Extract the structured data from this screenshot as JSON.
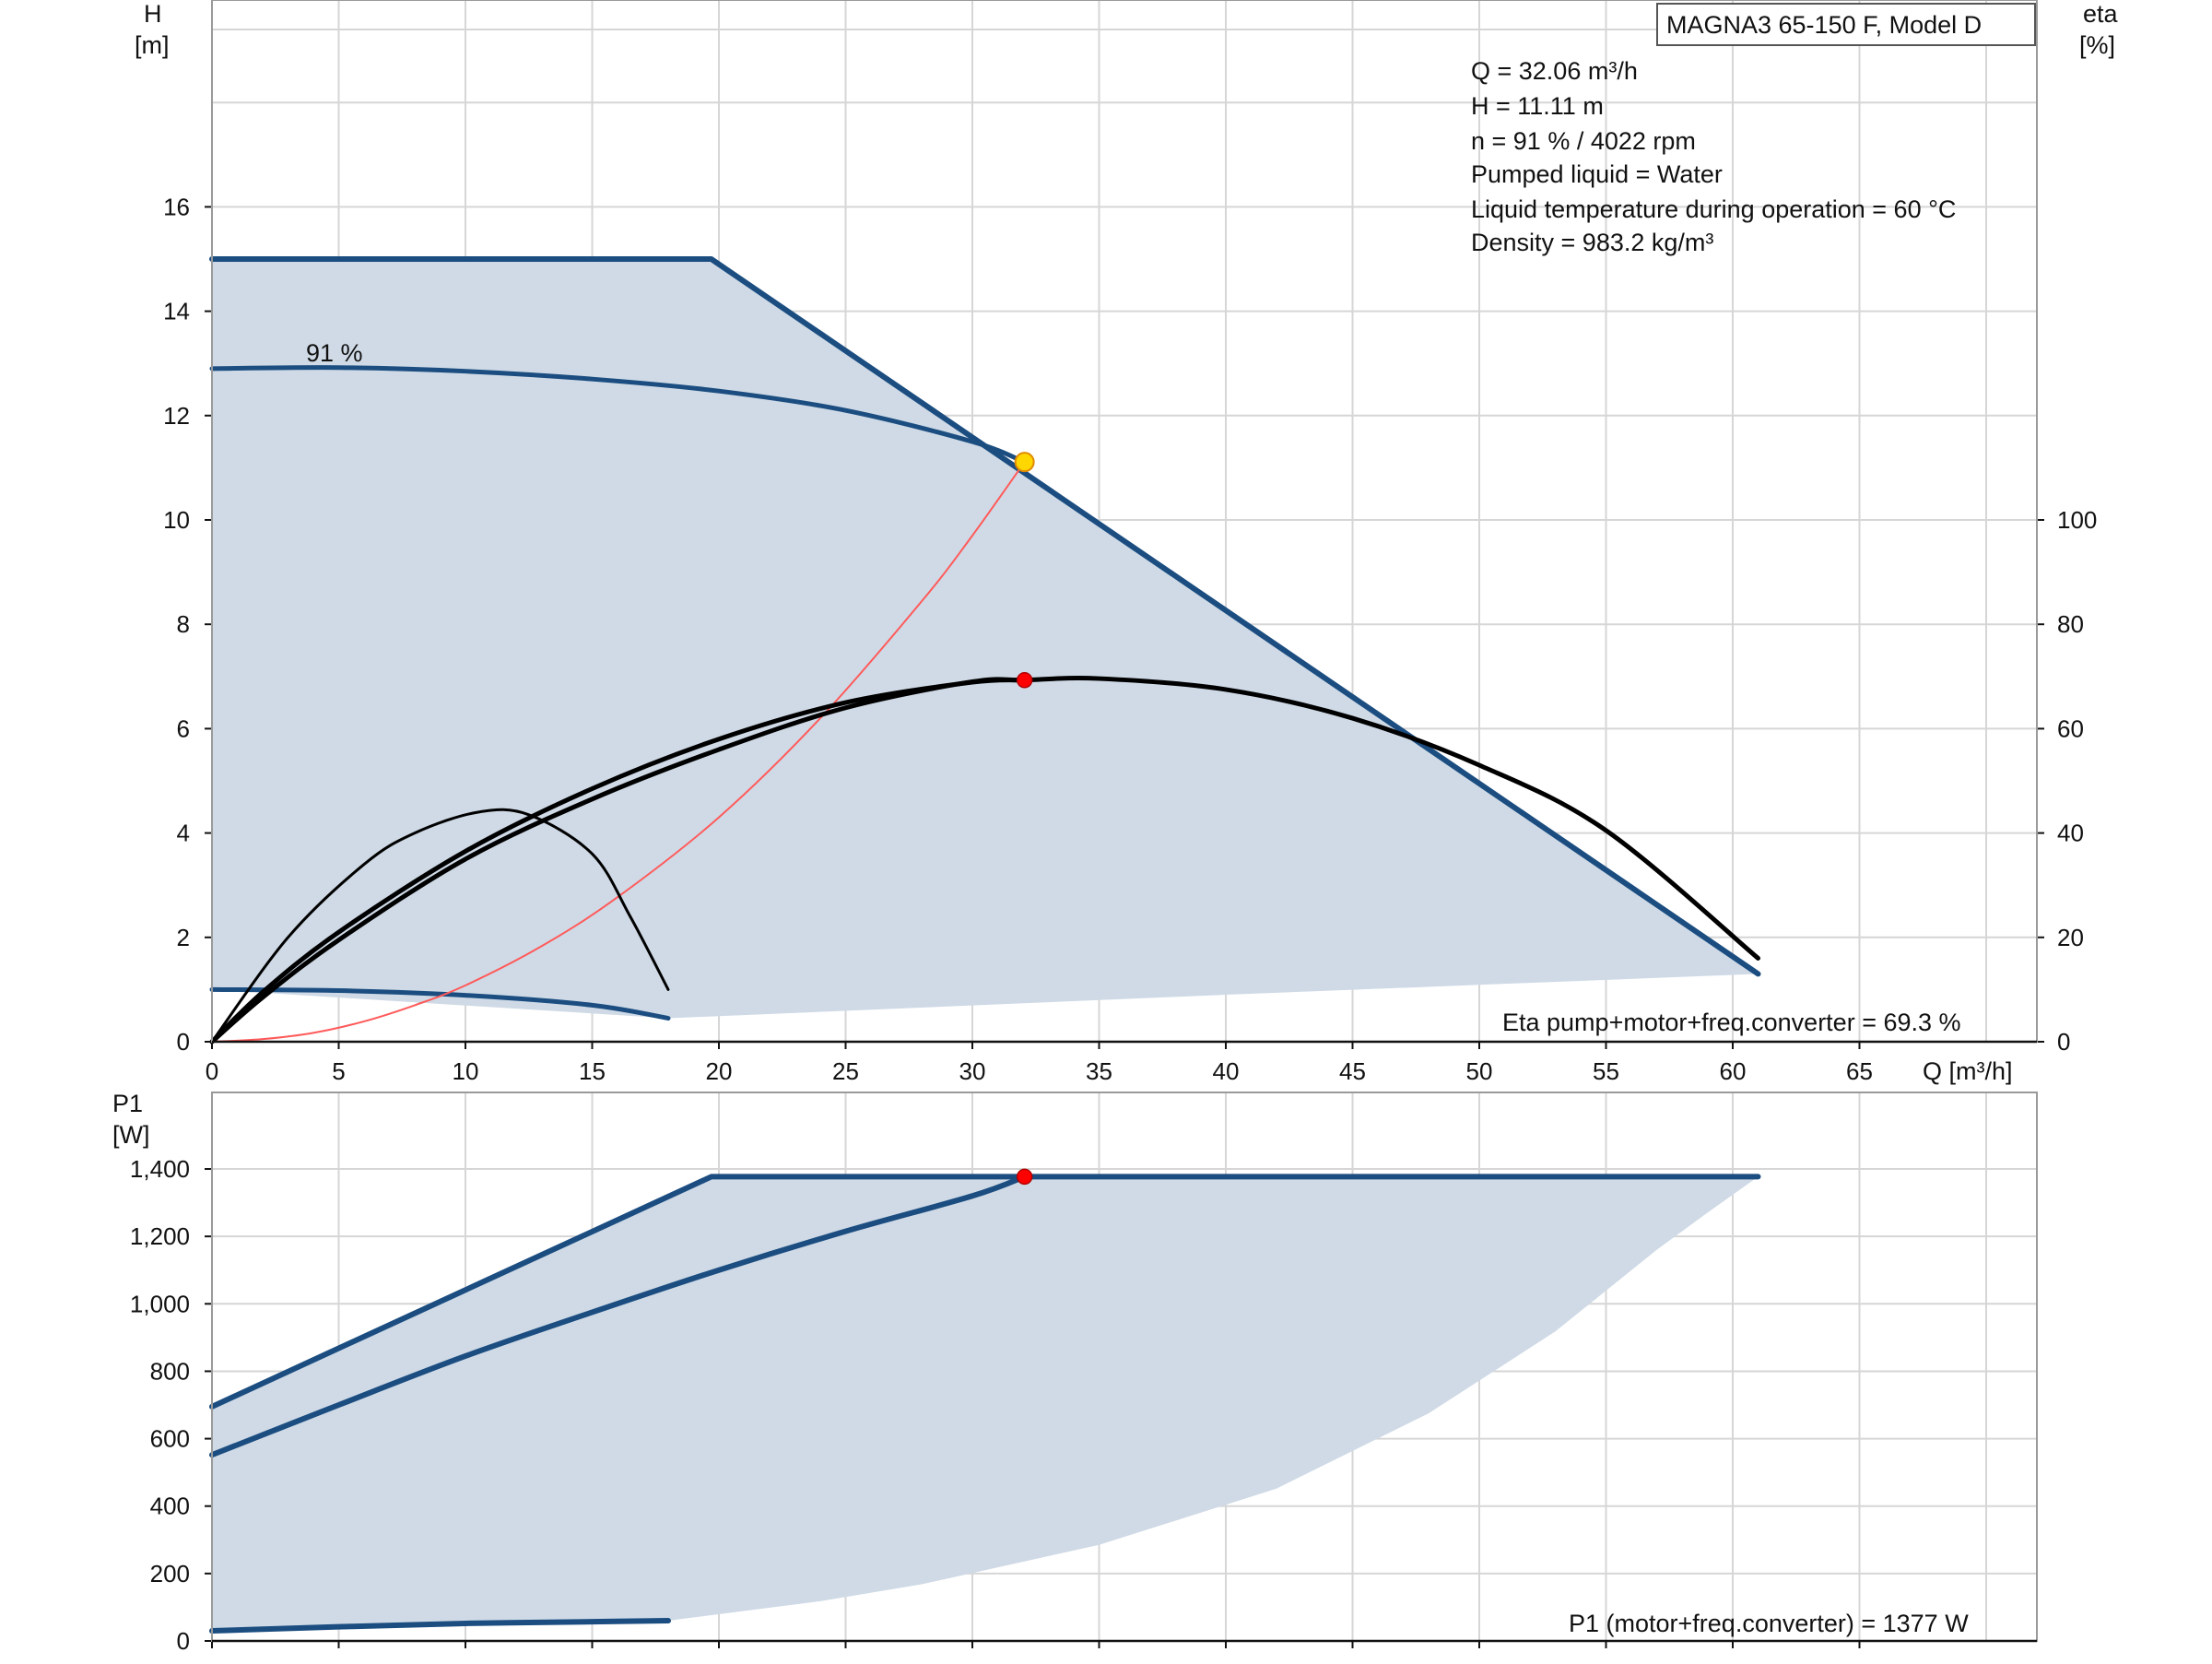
{
  "chart_data": [
    {
      "type": "line",
      "id": "head-efficiency",
      "title_box": "MAGNA3 65-150 F, Model D",
      "y_label": "H",
      "y_unit": "[m]",
      "y2_label": "eta",
      "y2_unit": "[%]",
      "x_label": "Q [m³/h]",
      "xlim": [
        0,
        72
      ],
      "ylim": [
        0,
        20
      ],
      "y2lim": [
        0,
        200
      ],
      "x_ticks": [
        "0",
        "5",
        "10",
        "15",
        "20",
        "25",
        "30",
        "35",
        "40",
        "45",
        "50",
        "55",
        "60",
        "65"
      ],
      "y_ticks": [
        "0",
        "2",
        "4",
        "6",
        "8",
        "10",
        "12",
        "14",
        "16"
      ],
      "y2_ticks": [
        "0",
        "20",
        "40",
        "60",
        "80",
        "100"
      ],
      "grid": true,
      "info_lines": [
        "Q = 32.06 m³/h",
        "H = 11.11 m",
        "n = 91 % / 4022 rpm",
        "Pumped liquid = Water",
        "Liquid temperature during operation = 60 °C",
        "Density = 983.2 kg/m³"
      ],
      "curve_label": "91 %",
      "eta_result": "Eta pump+motor+freq.converter = 69.3 %",
      "colors": {
        "area": "#cfdae6",
        "curve": "#1b4d80",
        "eta": "#000000",
        "system": "#ff5a5a",
        "duty_point_head": "#ffd700",
        "duty_point_eta": "#ff0000"
      },
      "operating_area": [
        [
          0,
          15
        ],
        [
          19.7,
          15
        ],
        [
          61,
          1.3
        ],
        [
          40,
          0.9
        ],
        [
          18,
          0.45
        ],
        [
          0,
          1
        ]
      ],
      "series": [
        {
          "role": "max-curve",
          "color": "#1b4d80",
          "points": [
            [
              0,
              15
            ],
            [
              19.7,
              15
            ],
            [
              61,
              1.3
            ]
          ]
        },
        {
          "role": "speed-curve-91",
          "color": "#1b4d80",
          "points": [
            [
              0,
              12.9
            ],
            [
              5,
              12.92
            ],
            [
              10,
              12.85
            ],
            [
              15,
              12.7
            ],
            [
              20,
              12.47
            ],
            [
              25,
              12.1
            ],
            [
              30,
              11.5
            ],
            [
              32.06,
              11.11
            ]
          ]
        },
        {
          "role": "min-curve",
          "color": "#1b4d80",
          "points": [
            [
              0,
              1
            ],
            [
              5,
              0.98
            ],
            [
              10,
              0.89
            ],
            [
              15,
              0.7
            ],
            [
              18,
              0.45
            ]
          ]
        },
        {
          "role": "system-curve",
          "color": "#ff5a5a",
          "points": [
            [
              0,
              0
            ],
            [
              2,
              0.05
            ],
            [
              4,
              0.17
            ],
            [
              6,
              0.39
            ],
            [
              8,
              0.7
            ],
            [
              10,
              1.08
            ],
            [
              13,
              1.83
            ],
            [
              16,
              2.77
            ],
            [
              20,
              4.3
            ],
            [
              24,
              6.2
            ],
            [
              28,
              8.44
            ],
            [
              30,
              9.7
            ],
            [
              32.06,
              11.11
            ]
          ]
        },
        {
          "role": "eta-max",
          "color": "#000000",
          "points": [
            [
              0,
              0
            ],
            [
              2,
              8.5
            ],
            [
              5,
              19.5
            ],
            [
              10,
              35
            ],
            [
              15,
              46.5
            ],
            [
              20,
              56
            ],
            [
              25,
              64
            ],
            [
              30,
              69
            ],
            [
              32.06,
              69.3
            ],
            [
              35,
              69.6
            ],
            [
              40,
              67.5
            ],
            [
              45,
              62
            ],
            [
              50,
              53
            ],
            [
              55,
              40.5
            ],
            [
              61,
              16
            ]
          ]
        },
        {
          "role": "eta-91",
          "color": "#000000",
          "points": [
            [
              0,
              0
            ],
            [
              2,
              9.5
            ],
            [
              5,
              21
            ],
            [
              10,
              36.5
            ],
            [
              15,
              48.5
            ],
            [
              20,
              58
            ],
            [
              25,
              65
            ],
            [
              30,
              68.9
            ],
            [
              32.06,
              69.3
            ]
          ]
        },
        {
          "role": "eta-min",
          "color": "#000000",
          "points": [
            [
              0,
              0
            ],
            [
              3,
              20
            ],
            [
              6,
              34
            ],
            [
              8,
              40
            ],
            [
              10.5,
              44
            ],
            [
              12.5,
              43.5
            ],
            [
              15,
              36
            ],
            [
              16.5,
              24
            ],
            [
              18,
              10
            ]
          ]
        }
      ],
      "duty_points": [
        {
          "axis": "head",
          "x": 32.06,
          "y": 11.11
        },
        {
          "axis": "eta",
          "x": 32.06,
          "y": 69.3
        }
      ]
    },
    {
      "type": "line",
      "id": "power",
      "y_label": "P1",
      "y_unit": "[W]",
      "xlim": [
        0,
        72
      ],
      "ylim": [
        0,
        1400
      ],
      "y_ticks": [
        "0",
        "200",
        "400",
        "600",
        "800",
        "1,000",
        "1,200",
        "1,400"
      ],
      "grid": true,
      "p1_result": "P1 (motor+freq.converter) = 1377 W",
      "operating_area": [
        [
          0,
          695
        ],
        [
          19.7,
          1377
        ],
        [
          61,
          1377
        ],
        [
          59,
          1270
        ],
        [
          57,
          1160
        ],
        [
          53,
          918
        ],
        [
          48,
          675
        ],
        [
          42,
          452
        ],
        [
          35,
          285
        ],
        [
          28,
          168
        ],
        [
          24,
          118
        ],
        [
          18,
          60
        ],
        [
          0,
          30
        ]
      ],
      "series": [
        {
          "role": "max-power",
          "color": "#1b4d80",
          "points": [
            [
              0,
              695
            ],
            [
              19.7,
              1377
            ],
            [
              61,
              1377
            ]
          ]
        },
        {
          "role": "power-91",
          "color": "#1b4d80",
          "points": [
            [
              0,
              552
            ],
            [
              5,
              700
            ],
            [
              10,
              845
            ],
            [
              15,
              975
            ],
            [
              20,
              1100
            ],
            [
              25,
              1215
            ],
            [
              30,
              1320
            ],
            [
              32.06,
              1377
            ]
          ]
        },
        {
          "role": "min-power",
          "color": "#1b4d80",
          "points": [
            [
              0,
              30
            ],
            [
              5,
              42
            ],
            [
              10,
              52
            ],
            [
              15,
              57
            ],
            [
              18,
              60
            ]
          ]
        }
      ],
      "duty_points": [
        {
          "x": 32.06,
          "y": 1377
        }
      ]
    }
  ]
}
